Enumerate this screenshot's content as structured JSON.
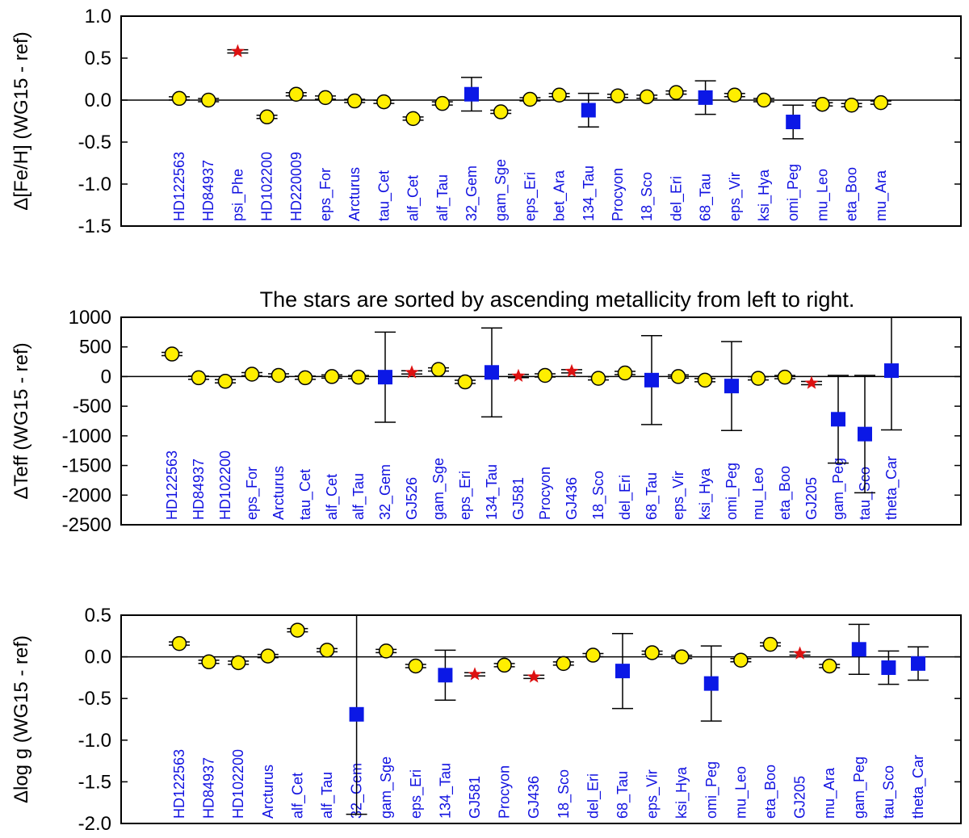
{
  "chart_data": [
    {
      "type": "scatter",
      "ylabel": "Δ[Fe/H] (WG15 - ref)",
      "ylim": [
        -1.5,
        1.0
      ],
      "yticks": [
        1.0,
        0.5,
        0.0,
        -0.5,
        -1.0,
        -1.5
      ],
      "ytick_labels": [
        "1.0",
        "0.5",
        "0.0",
        "-0.5",
        "-1.0",
        "-1.5"
      ],
      "zero_line": true,
      "stars": [
        {
          "name": "HD122563",
          "value": 0.02,
          "marker": "circle"
        },
        {
          "name": "HD84937",
          "value": 0.0,
          "marker": "circle"
        },
        {
          "name": "psi_Phe",
          "value": 0.58,
          "marker": "star"
        },
        {
          "name": "HD102200",
          "value": -0.2,
          "marker": "circle"
        },
        {
          "name": "HD220009",
          "value": 0.07,
          "marker": "circle"
        },
        {
          "name": "eps_For",
          "value": 0.03,
          "marker": "circle"
        },
        {
          "name": "Arcturus",
          "value": -0.01,
          "marker": "circle"
        },
        {
          "name": "tau_Cet",
          "value": -0.02,
          "marker": "circle"
        },
        {
          "name": "alf_Cet",
          "value": -0.22,
          "marker": "circle"
        },
        {
          "name": "alf_Tau",
          "value": -0.04,
          "marker": "circle"
        },
        {
          "name": "32_Gem",
          "value": 0.07,
          "marker": "square",
          "err": 0.2
        },
        {
          "name": "gam_Sge",
          "value": -0.14,
          "marker": "circle"
        },
        {
          "name": "eps_Eri",
          "value": 0.01,
          "marker": "circle"
        },
        {
          "name": "bet_Ara",
          "value": 0.06,
          "marker": "circle"
        },
        {
          "name": "134_Tau",
          "value": -0.12,
          "marker": "square",
          "err": 0.2
        },
        {
          "name": "Procyon",
          "value": 0.05,
          "marker": "circle"
        },
        {
          "name": "18_Sco",
          "value": 0.04,
          "marker": "circle"
        },
        {
          "name": "del_Eri",
          "value": 0.09,
          "marker": "circle"
        },
        {
          "name": "68_Tau",
          "value": 0.03,
          "marker": "square",
          "err": 0.2
        },
        {
          "name": "eps_Vir",
          "value": 0.06,
          "marker": "circle"
        },
        {
          "name": "ksi_Hya",
          "value": 0.0,
          "marker": "circle"
        },
        {
          "name": "omi_Peg",
          "value": -0.26,
          "marker": "square",
          "err": 0.2
        },
        {
          "name": "mu_Leo",
          "value": -0.05,
          "marker": "circle"
        },
        {
          "name": "eta_Boo",
          "value": -0.06,
          "marker": "circle"
        },
        {
          "name": "mu_Ara",
          "value": -0.03,
          "marker": "circle"
        }
      ]
    },
    {
      "type": "scatter",
      "title": "The stars are sorted by ascending metallicity from left to right.",
      "ylabel": "ΔTeff (WG15 - ref)",
      "ylim": [
        -2500,
        1000
      ],
      "yticks": [
        1000,
        500,
        0,
        -500,
        -1000,
        -1500,
        -2000,
        -2500
      ],
      "ytick_labels": [
        "1000",
        "500",
        "0",
        "-500",
        "-1000",
        "-1500",
        "-2000",
        "-2500"
      ],
      "zero_line": true,
      "stars": [
        {
          "name": "HD122563",
          "value": 380,
          "marker": "circle"
        },
        {
          "name": "HD84937",
          "value": -20,
          "marker": "circle"
        },
        {
          "name": "HD102200",
          "value": -80,
          "marker": "circle"
        },
        {
          "name": "eps_For",
          "value": 40,
          "marker": "circle"
        },
        {
          "name": "Arcturus",
          "value": 20,
          "marker": "circle"
        },
        {
          "name": "tau_Cet",
          "value": -20,
          "marker": "circle"
        },
        {
          "name": "alf_Cet",
          "value": 0,
          "marker": "circle"
        },
        {
          "name": "alf_Tau",
          "value": -10,
          "marker": "circle"
        },
        {
          "name": "32_Gem",
          "value": -10,
          "marker": "square",
          "err": 760
        },
        {
          "name": "GJ526",
          "value": 70,
          "marker": "star"
        },
        {
          "name": "gam_Sge",
          "value": 120,
          "marker": "circle"
        },
        {
          "name": "eps_Eri",
          "value": -90,
          "marker": "circle"
        },
        {
          "name": "134_Tau",
          "value": 70,
          "marker": "square",
          "err": 750
        },
        {
          "name": "GJ581",
          "value": 10,
          "marker": "star"
        },
        {
          "name": "Procyon",
          "value": 20,
          "marker": "circle"
        },
        {
          "name": "GJ436",
          "value": 90,
          "marker": "star"
        },
        {
          "name": "18_Sco",
          "value": -30,
          "marker": "circle"
        },
        {
          "name": "del_Eri",
          "value": 60,
          "marker": "circle"
        },
        {
          "name": "68_Tau",
          "value": -60,
          "marker": "square",
          "err": 750
        },
        {
          "name": "eps_Vir",
          "value": 0,
          "marker": "circle"
        },
        {
          "name": "ksi_Hya",
          "value": -60,
          "marker": "circle"
        },
        {
          "name": "omi_Peg",
          "value": -160,
          "marker": "square",
          "err": 750
        },
        {
          "name": "mu_Leo",
          "value": -30,
          "marker": "circle"
        },
        {
          "name": "eta_Boo",
          "value": -10,
          "marker": "circle"
        },
        {
          "name": "GJ205",
          "value": -110,
          "marker": "star"
        },
        {
          "name": "gam_Peg",
          "value": -720,
          "marker": "square",
          "err": 740
        },
        {
          "name": "tau_Sco",
          "value": -970,
          "marker": "square",
          "err": 990
        },
        {
          "name": "theta_Car",
          "value": 100,
          "marker": "square",
          "err": 1000
        }
      ]
    },
    {
      "type": "scatter",
      "ylabel": "Δlog g (WG15 - ref)",
      "ylim": [
        -2.0,
        0.5
      ],
      "yticks": [
        0.5,
        0.0,
        -0.5,
        -1.0,
        -1.5,
        -2.0
      ],
      "ytick_labels": [
        "0.5",
        "0.0",
        "-0.5",
        "-1.0",
        "-1.5",
        "-2.0"
      ],
      "zero_line": true,
      "stars": [
        {
          "name": "HD122563",
          "value": 0.16,
          "marker": "circle"
        },
        {
          "name": "HD84937",
          "value": -0.06,
          "marker": "circle"
        },
        {
          "name": "HD102200",
          "value": -0.07,
          "marker": "circle"
        },
        {
          "name": "Arcturus",
          "value": 0.01,
          "marker": "circle"
        },
        {
          "name": "alf_Cet",
          "value": 0.32,
          "marker": "circle"
        },
        {
          "name": "alf_Tau",
          "value": 0.08,
          "marker": "circle"
        },
        {
          "name": "32_Gem",
          "value": -0.69,
          "marker": "square",
          "err": 1.2
        },
        {
          "name": "gam_Sge",
          "value": 0.07,
          "marker": "circle"
        },
        {
          "name": "eps_Eri",
          "value": -0.11,
          "marker": "circle"
        },
        {
          "name": "134_Tau",
          "value": -0.22,
          "marker": "square",
          "err": 0.3
        },
        {
          "name": "GJ581",
          "value": -0.21,
          "marker": "star"
        },
        {
          "name": "Procyon",
          "value": -0.1,
          "marker": "circle"
        },
        {
          "name": "GJ436",
          "value": -0.24,
          "marker": "star"
        },
        {
          "name": "18_Sco",
          "value": -0.08,
          "marker": "circle"
        },
        {
          "name": "del_Eri",
          "value": 0.02,
          "marker": "circle"
        },
        {
          "name": "68_Tau",
          "value": -0.17,
          "marker": "square",
          "err": 0.45
        },
        {
          "name": "eps_Vir",
          "value": 0.05,
          "marker": "circle"
        },
        {
          "name": "ksi_Hya",
          "value": 0.0,
          "marker": "circle"
        },
        {
          "name": "omi_Peg",
          "value": -0.32,
          "marker": "square",
          "err": 0.45
        },
        {
          "name": "mu_Leo",
          "value": -0.04,
          "marker": "circle"
        },
        {
          "name": "eta_Boo",
          "value": 0.15,
          "marker": "circle"
        },
        {
          "name": "GJ205",
          "value": 0.04,
          "marker": "star"
        },
        {
          "name": "mu_Ara",
          "value": -0.11,
          "marker": "circle"
        },
        {
          "name": "gam_Peg",
          "value": 0.09,
          "marker": "square",
          "err": 0.3
        },
        {
          "name": "tau_Sco",
          "value": -0.13,
          "marker": "square",
          "err": 0.2
        },
        {
          "name": "theta_Car",
          "value": -0.08,
          "marker": "square",
          "err": 0.2
        }
      ]
    }
  ],
  "colors": {
    "circle_fill": "#ffee00",
    "square_fill": "#0b18e6",
    "star_fill": "#dd1111",
    "label_text": "#1010e0",
    "axis": "#000000"
  }
}
